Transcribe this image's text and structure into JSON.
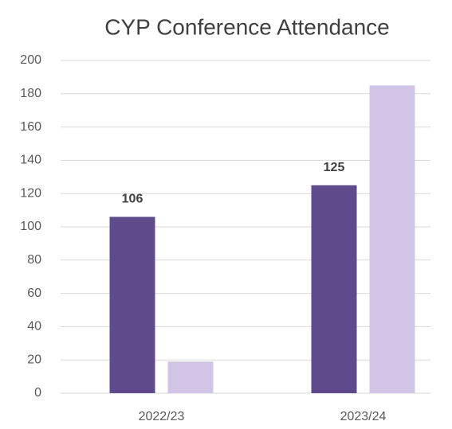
{
  "chart_data": {
    "type": "bar",
    "title": "CYP Conference Attendance",
    "categories": [
      "2022/23",
      "2023/24"
    ],
    "series": [
      {
        "color": "#5f4b8b",
        "values": [
          106,
          125
        ],
        "data_labels": true
      },
      {
        "color": "#d1c4e6",
        "values": [
          19,
          185
        ],
        "data_labels": false
      }
    ],
    "ylim": [
      0,
      200
    ],
    "yticks": [
      0,
      20,
      40,
      60,
      80,
      100,
      120,
      140,
      160,
      180,
      200
    ],
    "grid": true
  }
}
